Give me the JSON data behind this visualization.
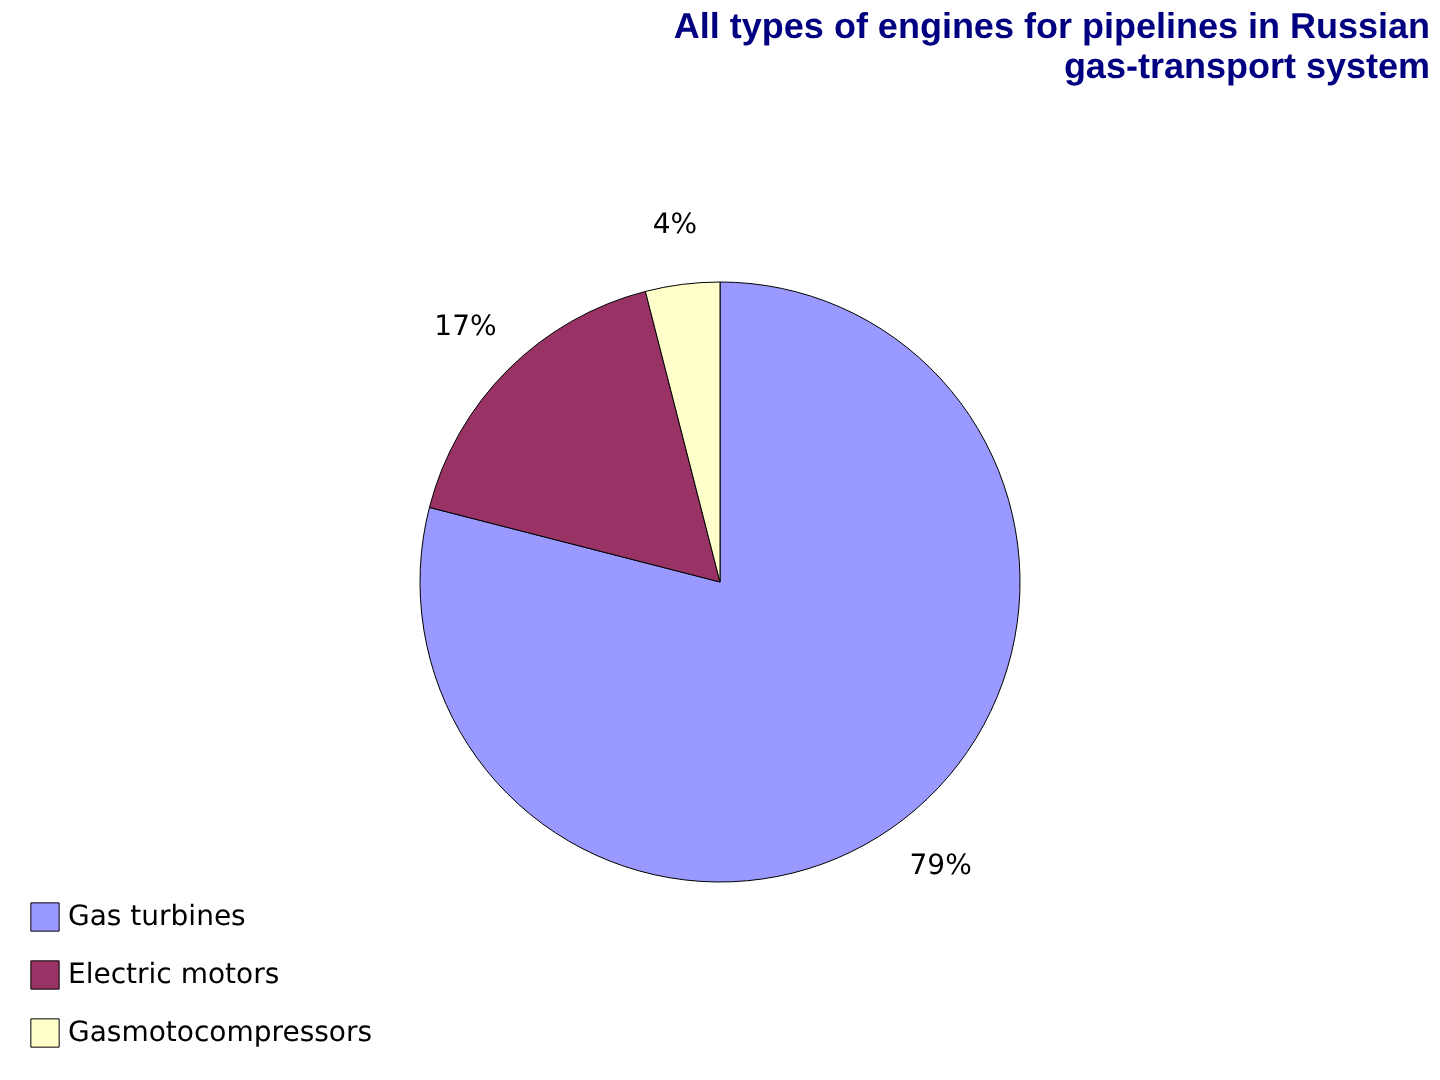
{
  "chart_data": {
    "type": "pie",
    "title": [
      "All types of engines for pipelines in Russian",
      "gas-transport system"
    ],
    "categories": [
      "Gas turbines",
      "Electric motors",
      "Gasmotocompressors"
    ],
    "values": [
      79,
      17,
      4
    ],
    "colors": [
      "#9999ff",
      "#993366",
      "#ffffcc"
    ],
    "value_labels": [
      "79%",
      "17%",
      "4%"
    ],
    "legend": "bottom left"
  }
}
